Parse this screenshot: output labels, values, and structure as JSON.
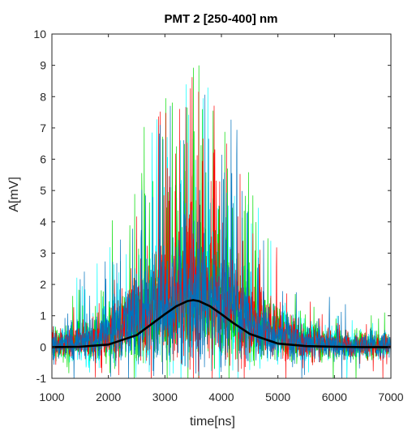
{
  "chart_data": {
    "type": "line",
    "title": "PMT 2 [250-400] nm",
    "xlabel": "time[ns]",
    "ylabel": "A[mV]",
    "xlim": [
      1000,
      7000
    ],
    "ylim": [
      -1,
      10
    ],
    "xticks": [
      1000,
      2000,
      3000,
      4000,
      5000,
      6000,
      7000
    ],
    "yticks": [
      -1,
      0,
      1,
      2,
      3,
      4,
      5,
      6,
      7,
      8,
      9,
      10
    ],
    "grid": false,
    "series": [
      {
        "kind": "noisy-trace",
        "color": "#00ffff",
        "peak_x": 3500,
        "peak_mean": 1.5,
        "baseline": 0.05
      },
      {
        "kind": "noisy-trace",
        "color": "#00dd00",
        "peak_x": 3500,
        "peak_mean": 1.5,
        "baseline": 0.05
      },
      {
        "kind": "noisy-trace",
        "color": "#ff0000",
        "peak_x": 3500,
        "peak_mean": 1.5,
        "baseline": 0.05
      },
      {
        "kind": "noisy-trace",
        "color": "#0072bd",
        "peak_x": 3500,
        "peak_mean": 1.5,
        "baseline": 0.05
      },
      {
        "kind": "mean-curve",
        "color": "#000000",
        "x": [
          1000,
          1500,
          2000,
          2500,
          2800,
          3000,
          3200,
          3400,
          3500,
          3600,
          3800,
          4000,
          4200,
          4500,
          5000,
          5500,
          6000,
          6500,
          7000
        ],
        "y": [
          0.0,
          0.01,
          0.08,
          0.38,
          0.78,
          1.05,
          1.3,
          1.47,
          1.5,
          1.47,
          1.3,
          1.05,
          0.78,
          0.42,
          0.11,
          0.03,
          0.01,
          0.0,
          0.0
        ]
      }
    ]
  }
}
